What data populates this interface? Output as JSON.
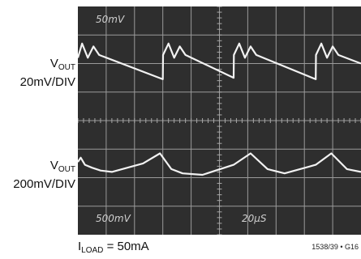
{
  "labels": {
    "top_trace": {
      "main": "V",
      "sub": "OUT",
      "scale": "20mV/DIV"
    },
    "bottom_trace": {
      "main": "V",
      "sub": "OUT",
      "scale": "200mV/DIV"
    },
    "load": {
      "main": "I",
      "sub": "LOAD",
      "value": " = 50mA"
    },
    "figure_id": "1538/39 • G16"
  },
  "scope_readouts": {
    "top_left": "50mV",
    "bottom_left": "500mV",
    "bottom_mid": "20μS"
  },
  "chart_data": {
    "type": "line",
    "grid": true,
    "x_divisions": 10,
    "y_divisions": 8,
    "series": [
      {
        "x": [
          0,
          0.15,
          0.35,
          0.55,
          0.75,
          3.0,
          3.01,
          3.2,
          3.4,
          3.6,
          3.8,
          5.5,
          5.51,
          5.7,
          5.9,
          6.1,
          6.3,
          8.4,
          8.41,
          8.6,
          8.8,
          9.0,
          9.2,
          10.0
        ],
        "y": [
          6.2,
          6.7,
          6.2,
          6.6,
          6.3,
          5.45,
          6.3,
          6.7,
          6.2,
          6.6,
          6.3,
          5.5,
          6.3,
          6.7,
          6.2,
          6.6,
          6.3,
          5.45,
          6.3,
          6.7,
          6.2,
          6.6,
          6.3,
          6.0
        ]
      },
      {
        "x": [
          0,
          0.1,
          0.25,
          0.5,
          0.8,
          1.2,
          2.3,
          2.9,
          3.3,
          3.7,
          4.4,
          5.5,
          6.1,
          6.7,
          7.3,
          8.4,
          8.95,
          9.5,
          10.0
        ],
        "y": [
          2.55,
          2.7,
          2.45,
          2.35,
          2.25,
          2.2,
          2.5,
          2.85,
          2.3,
          2.15,
          2.1,
          2.45,
          2.85,
          2.3,
          2.15,
          2.45,
          2.85,
          2.3,
          2.2
        ]
      }
    ]
  }
}
